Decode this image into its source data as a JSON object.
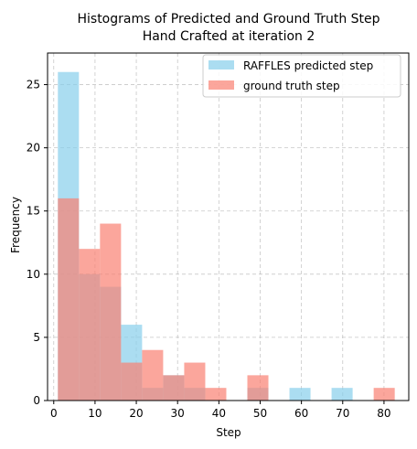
{
  "chart_data": {
    "type": "bar",
    "title_lines": [
      "Histograms of Predicted and Ground Truth Step",
      "Hand Crafted at iteration 2"
    ],
    "xlabel": "Step",
    "ylabel": "Frequency",
    "xlim": [
      -1.5,
      86
    ],
    "ylim": [
      0,
      27.5
    ],
    "xticks": [
      0,
      10,
      20,
      30,
      40,
      50,
      60,
      70,
      80
    ],
    "yticks": [
      0,
      5,
      10,
      15,
      20,
      25
    ],
    "grid": true,
    "legend_position": "upper-right",
    "bin_edges": [
      1,
      6.1,
      11.2,
      16.3,
      21.4,
      26.5,
      31.6,
      36.7,
      41.8,
      46.9,
      52,
      57.1,
      62.2,
      67.3,
      72.4,
      77.5,
      82.6
    ],
    "series": [
      {
        "name": "RAFFLES predicted step",
        "color": "#87CEEB",
        "opacity": 0.7,
        "values": [
          26,
          10,
          9,
          6,
          1,
          2,
          1,
          0,
          0,
          1,
          0,
          1,
          0,
          1,
          0,
          0
        ]
      },
      {
        "name": "ground truth step",
        "color": "#FA8072",
        "opacity": 0.7,
        "values": [
          16,
          12,
          14,
          3,
          4,
          2,
          3,
          1,
          0,
          2,
          0,
          0,
          0,
          0,
          0,
          1
        ]
      }
    ]
  }
}
